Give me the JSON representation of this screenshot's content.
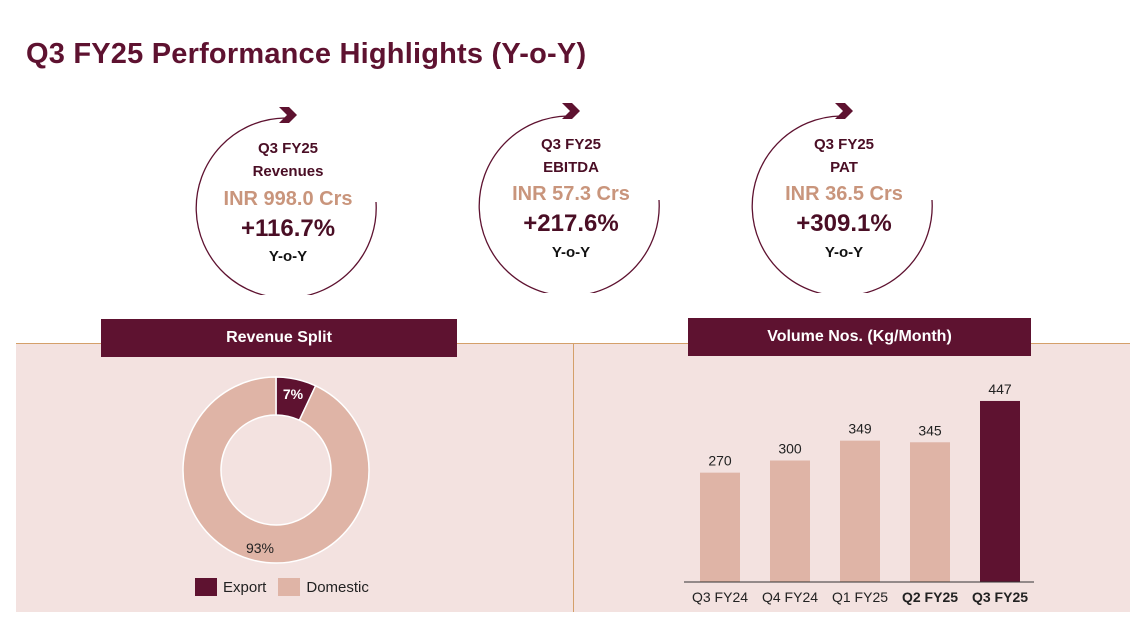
{
  "title": "Q3 FY25 Performance Highlights (Y-o-Y)",
  "kpis": [
    {
      "period": "Q3 FY25",
      "metric": "Revenues",
      "value": "INR 998.0 Crs",
      "change": "+116.7%",
      "basis": "Y-o-Y"
    },
    {
      "period": "Q3 FY25",
      "metric": "EBITDA",
      "value": "INR 57.3 Crs",
      "change": "+217.6%",
      "basis": "Y-o-Y"
    },
    {
      "period": "Q3 FY25",
      "metric": "PAT",
      "value": "INR 36.5 Crs",
      "change": "+309.1%",
      "basis": "Y-o-Y"
    }
  ],
  "colors": {
    "maroon": "#5e1230",
    "tan": "#dfb4a6",
    "panel": "#f3e2e0",
    "gold": "#c9957c"
  },
  "chart_data": [
    {
      "type": "pie",
      "title": "Revenue Split",
      "categories": [
        "Export",
        "Domestic"
      ],
      "values": [
        7,
        93
      ],
      "labels": [
        "7%",
        "93%"
      ],
      "legend": [
        "Export",
        "Domestic"
      ],
      "legend_position": "bottom"
    },
    {
      "type": "bar",
      "title": "Volume Nos. (Kg/Month)",
      "categories": [
        "Q3 FY24",
        "Q4 FY24",
        "Q1 FY25",
        "Q2 FY25",
        "Q3 FY25"
      ],
      "values": [
        270,
        300,
        349,
        345,
        447
      ],
      "bold_categories": [
        "Q2 FY25",
        "Q3 FY25"
      ],
      "highlight_category": "Q3 FY25",
      "ylim": [
        0,
        500
      ],
      "grid": false
    }
  ]
}
